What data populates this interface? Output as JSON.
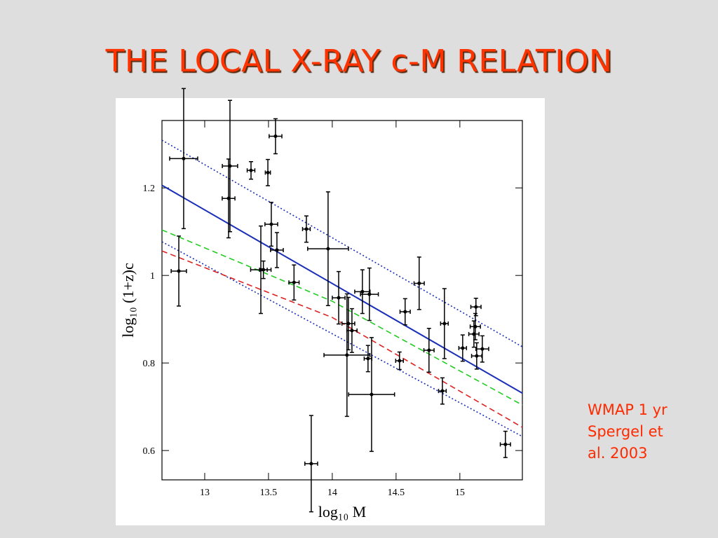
{
  "chart_data": {
    "type": "scatter",
    "title": "THE LOCAL X-RAY c-M RELATION",
    "xlabel": "log₁₀ M",
    "ylabel": "log₁₀ (1+z)c",
    "annotation": [
      "WMAP 1 yr",
      "Spergel et",
      "al. 2003"
    ],
    "xlim": [
      12.665,
      15.49
    ],
    "ylim": [
      0.533,
      1.354
    ],
    "xticks": [
      13,
      13.5,
      14,
      14.5,
      15
    ],
    "yticks": [
      0.6,
      0.8,
      1,
      1.2
    ],
    "series": [
      {
        "color": "#000000",
        "x": [
          12.835,
          12.797,
          13.198,
          13.187,
          13.363,
          13.495,
          13.555,
          13.522,
          13.566,
          13.44,
          13.46,
          13.7,
          13.797,
          13.835,
          13.967,
          14.05,
          14.126,
          14.154,
          14.115,
          14.236,
          14.291,
          14.28,
          14.308,
          14.571,
          14.527,
          14.681,
          14.758,
          14.879,
          14.863,
          15.022,
          15.126,
          15.121,
          15.11,
          15.176,
          15.132,
          15.357
        ],
        "values": [
          1.267,
          1.01,
          1.25,
          1.176,
          1.24,
          1.235,
          1.318,
          1.117,
          1.058,
          1.013,
          1.013,
          0.984,
          1.106,
          0.57,
          1.061,
          0.949,
          0.89,
          0.874,
          0.818,
          0.963,
          0.957,
          0.81,
          0.728,
          0.917,
          0.805,
          0.982,
          0.829,
          0.89,
          0.736,
          0.834,
          0.928,
          0.883,
          0.866,
          0.832,
          0.816,
          0.614
        ],
        "xerr": [
          0.11,
          0.06,
          0.06,
          0.05,
          0.03,
          0.02,
          0.05,
          0.05,
          0.05,
          0.08,
          0.03,
          0.04,
          0.03,
          0.05,
          0.16,
          0.05,
          0.05,
          0.04,
          0.18,
          0.06,
          0.07,
          0.03,
          0.18,
          0.04,
          0.03,
          0.04,
          0.04,
          0.03,
          0.03,
          0.03,
          0.04,
          0.04,
          0.04,
          0.05,
          0.04,
          0.04
        ],
        "yerr": [
          0.16,
          0.08,
          0.15,
          0.09,
          0.02,
          0.03,
          0.04,
          0.05,
          0.04,
          0.1,
          0.02,
          0.04,
          0.03,
          0.11,
          0.13,
          0.06,
          0.06,
          0.05,
          0.14,
          0.05,
          0.06,
          0.03,
          0.13,
          0.03,
          0.02,
          0.06,
          0.05,
          0.08,
          0.03,
          0.03,
          0.02,
          0.03,
          0.03,
          0.03,
          0.03,
          0.03
        ]
      }
    ],
    "lines": [
      {
        "color": "#1a2fb8",
        "style": "solid",
        "x": [
          12.665,
          15.49
        ],
        "values": [
          1.206,
          0.731
        ]
      },
      {
        "color": "#1a2fb8",
        "style": "dotted",
        "x": [
          12.665,
          15.49
        ],
        "values": [
          1.309,
          0.837
        ]
      },
      {
        "color": "#1a2fb8",
        "style": "dotted",
        "x": [
          12.665,
          15.49
        ],
        "values": [
          1.077,
          0.632
        ]
      },
      {
        "color": "#22cc22",
        "style": "dashed",
        "x": [
          12.665,
          14.0,
          15.49
        ],
        "values": [
          1.104,
          0.941,
          0.704
        ]
      },
      {
        "color": "#dd2222",
        "style": "dashed",
        "x": [
          12.665,
          14.0,
          15.49
        ],
        "values": [
          1.056,
          0.904,
          0.653
        ]
      }
    ]
  }
}
